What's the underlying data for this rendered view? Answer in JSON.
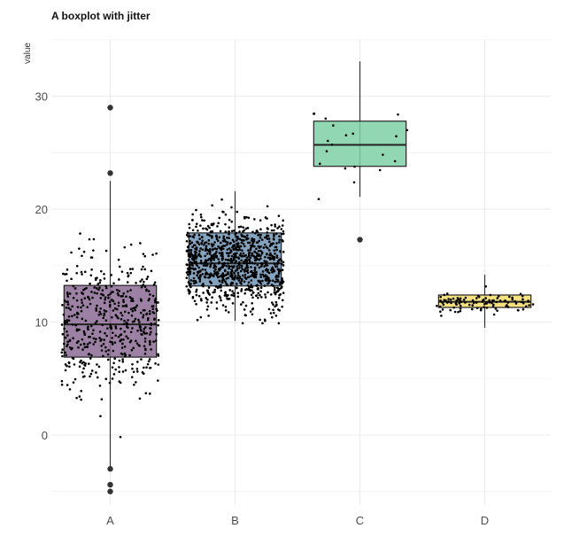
{
  "chart_data": {
    "type": "boxplot",
    "title": "A boxplot with jitter",
    "xlabel": "",
    "ylabel": "value",
    "ylim": [
      -6.2,
      35
    ],
    "yticks": [
      0,
      10,
      20,
      30
    ],
    "grid": true,
    "legend": "none",
    "categories": [
      "A",
      "B",
      "C",
      "D"
    ],
    "boxes": [
      {
        "name": "A",
        "color": "#8b6b94",
        "n": 500,
        "q1": 6.9,
        "median": 9.8,
        "q3": 13.25,
        "whisker_low": -3.0,
        "whisker_high": 22.5,
        "outliers": [
          29.0,
          23.2,
          -3.0,
          -4.4,
          -5.0
        ]
      },
      {
        "name": "B",
        "color": "#6f93b3",
        "n": 1000,
        "q1": 13.2,
        "median": 15.2,
        "q3": 17.9,
        "whisker_low": 10.1,
        "whisker_high": 21.6,
        "outliers": []
      },
      {
        "name": "C",
        "color": "#7fd0a6",
        "n": 20,
        "q1": 23.8,
        "median": 25.7,
        "q3": 27.8,
        "whisker_low": 21.1,
        "whisker_high": 33.1,
        "outliers": [
          17.3
        ]
      },
      {
        "name": "D",
        "color": "#f4dc6a",
        "n": 100,
        "q1": 11.3,
        "median": 11.8,
        "q3": 12.4,
        "whisker_low": 9.5,
        "whisker_high": 14.2,
        "outliers": []
      }
    ]
  }
}
